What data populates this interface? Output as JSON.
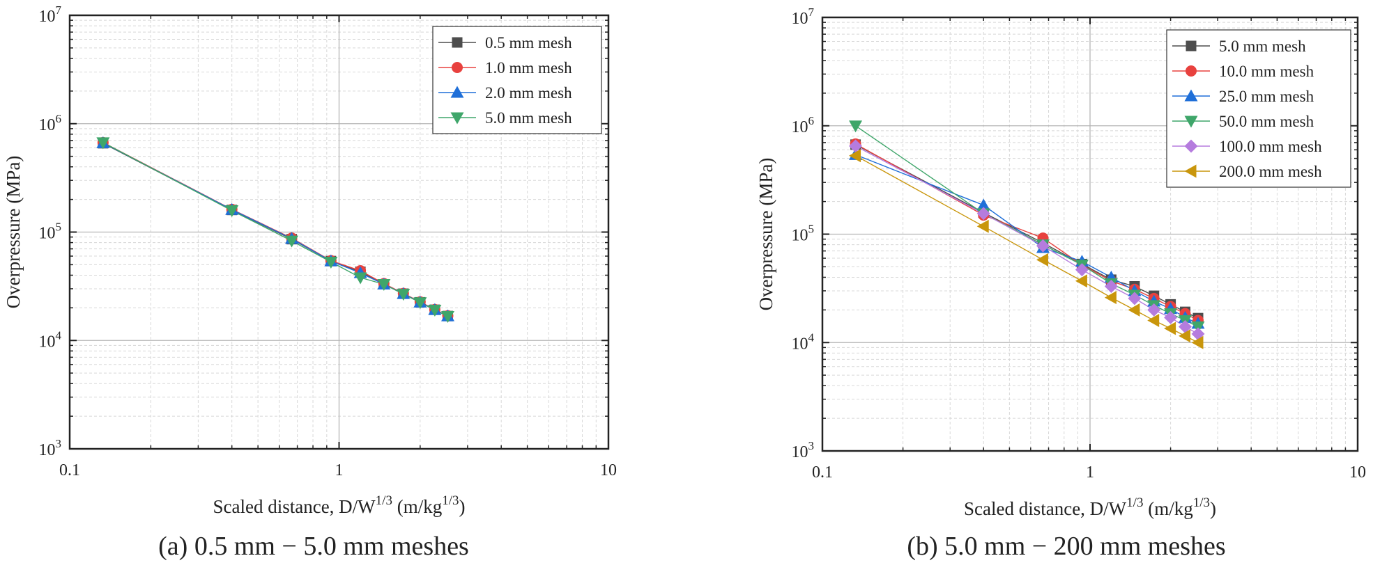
{
  "figure": {
    "panels": [
      {
        "caption": "(a) 0.5 mm − 5.0 mm meshes",
        "xlabel": "Scaled distance, D/W",
        "xlabel_sup": "1/3",
        "xlabel_unit": " (m/kg",
        "xlabel_unit_sup": "1/3",
        "xlabel_close": ")",
        "ylabel": "Overpressure (MPa)"
      },
      {
        "caption": "(b) 5.0 mm − 200 mm meshes",
        "xlabel": "Scaled distance, D/W",
        "xlabel_sup": "1/3",
        "xlabel_unit": " (m/kg",
        "xlabel_unit_sup": "1/3",
        "xlabel_close": ")",
        "ylabel": "Overpressure (MPa)"
      }
    ]
  },
  "chart_data": [
    {
      "type": "line",
      "title": "(a) 0.5 mm − 5.0 mm meshes",
      "xscale": "log",
      "yscale": "log",
      "xlim": [
        0.1,
        10
      ],
      "ylim": [
        1000,
        10000000
      ],
      "xticks": [
        {
          "value": 0.1,
          "label": "0.1"
        },
        {
          "value": 1,
          "label": "1"
        },
        {
          "value": 10,
          "label": "10"
        }
      ],
      "yticks": [
        {
          "value": 1000,
          "base": "10",
          "exp": "3"
        },
        {
          "value": 10000,
          "base": "10",
          "exp": "4"
        },
        {
          "value": 100000,
          "base": "10",
          "exp": "5"
        },
        {
          "value": 1000000,
          "base": "10",
          "exp": "6"
        },
        {
          "value": 10000000,
          "base": "10",
          "exp": "7"
        }
      ],
      "grid": true,
      "legend_position": "top-right",
      "series": [
        {
          "name": "0.5 mm mesh",
          "color": "#4d4d4d",
          "marker": "square",
          "x": [
            0.133,
            0.4,
            0.667,
            0.933,
            1.2,
            1.467,
            1.733,
            2.0,
            2.267,
            2.533
          ],
          "y": [
            660000,
            160000,
            86000,
            54000,
            43000,
            33000,
            27000,
            22500,
            19200,
            16800
          ]
        },
        {
          "name": "1.0 mm mesh",
          "color": "#e8413e",
          "marker": "circle",
          "x": [
            0.133,
            0.4,
            0.667,
            0.933,
            1.2,
            1.467,
            1.733,
            2.0,
            2.267,
            2.533
          ],
          "y": [
            670000,
            162000,
            88000,
            54500,
            44000,
            33500,
            27200,
            22700,
            19300,
            16900
          ]
        },
        {
          "name": "2.0 mm mesh",
          "color": "#1f6fd8",
          "marker": "triangle-up",
          "x": [
            0.133,
            0.4,
            0.667,
            0.933,
            1.2,
            1.467,
            1.733,
            2.0,
            2.267,
            2.533
          ],
          "y": [
            665000,
            161000,
            87000,
            54000,
            42000,
            33000,
            27000,
            22500,
            19200,
            16800
          ]
        },
        {
          "name": "5.0 mm mesh",
          "color": "#3fa66a",
          "marker": "triangle-down",
          "x": [
            0.133,
            0.4,
            0.667,
            0.933,
            1.2,
            1.467,
            1.733,
            2.0,
            2.267,
            2.533
          ],
          "y": [
            670000,
            158000,
            83000,
            53000,
            38000,
            33000,
            26800,
            22400,
            19100,
            16700
          ]
        }
      ]
    },
    {
      "type": "line",
      "title": "(b) 5.0 mm − 200 mm meshes",
      "xscale": "log",
      "yscale": "log",
      "xlim": [
        0.1,
        10
      ],
      "ylim": [
        1000,
        10000000
      ],
      "xticks": [
        {
          "value": 0.1,
          "label": "0.1"
        },
        {
          "value": 1,
          "label": "1"
        },
        {
          "value": 10,
          "label": "10"
        }
      ],
      "yticks": [
        {
          "value": 1000,
          "base": "10",
          "exp": "3"
        },
        {
          "value": 10000,
          "base": "10",
          "exp": "4"
        },
        {
          "value": 100000,
          "base": "10",
          "exp": "5"
        },
        {
          "value": 1000000,
          "base": "10",
          "exp": "6"
        },
        {
          "value": 10000000,
          "base": "10",
          "exp": "7"
        }
      ],
      "grid": true,
      "legend_position": "top-right",
      "series": [
        {
          "name": "5.0 mm mesh",
          "color": "#4d4d4d",
          "marker": "square",
          "x": [
            0.133,
            0.4,
            0.667,
            0.933,
            1.2,
            1.467,
            1.733,
            2.0,
            2.267,
            2.533
          ],
          "y": [
            670000,
            158000,
            83000,
            53000,
            38000,
            33000,
            27000,
            22500,
            19200,
            16800
          ]
        },
        {
          "name": "10.0 mm mesh",
          "color": "#e8413e",
          "marker": "circle",
          "x": [
            0.133,
            0.4,
            0.667,
            0.933,
            1.2,
            1.467,
            1.733,
            2.0,
            2.267,
            2.533
          ],
          "y": [
            680000,
            150000,
            92000,
            52000,
            37000,
            31000,
            25500,
            21500,
            18500,
            16000
          ]
        },
        {
          "name": "25.0 mm mesh",
          "color": "#1f6fd8",
          "marker": "triangle-up",
          "x": [
            0.133,
            0.4,
            0.667,
            0.933,
            1.2,
            1.467,
            1.733,
            2.0,
            2.267,
            2.533
          ],
          "y": [
            540000,
            185000,
            75000,
            56000,
            40000,
            30000,
            24000,
            20500,
            17000,
            15000
          ]
        },
        {
          "name": "50.0 mm mesh",
          "color": "#3fa66a",
          "marker": "triangle-down",
          "x": [
            0.133,
            0.4,
            0.667,
            0.933,
            1.2,
            1.467,
            1.733,
            2.0,
            2.267,
            2.533
          ],
          "y": [
            1000000,
            155000,
            80000,
            52000,
            35000,
            27500,
            22000,
            18500,
            16000,
            14000
          ]
        },
        {
          "name": "100.0 mm mesh",
          "color": "#b57cde",
          "marker": "diamond",
          "x": [
            0.133,
            0.4,
            0.667,
            0.933,
            1.2,
            1.467,
            1.733,
            2.0,
            2.267,
            2.533
          ],
          "y": [
            650000,
            155000,
            78000,
            47000,
            33000,
            25500,
            20000,
            17000,
            14000,
            12000
          ]
        },
        {
          "name": "200.0 mm mesh",
          "color": "#c9960c",
          "marker": "triangle-left",
          "x": [
            0.133,
            0.4,
            0.667,
            0.933,
            1.2,
            1.467,
            1.733,
            2.0,
            2.267,
            2.533
          ],
          "y": [
            530000,
            118000,
            58000,
            37000,
            26000,
            20000,
            16000,
            13500,
            11500,
            10000
          ]
        }
      ]
    }
  ]
}
